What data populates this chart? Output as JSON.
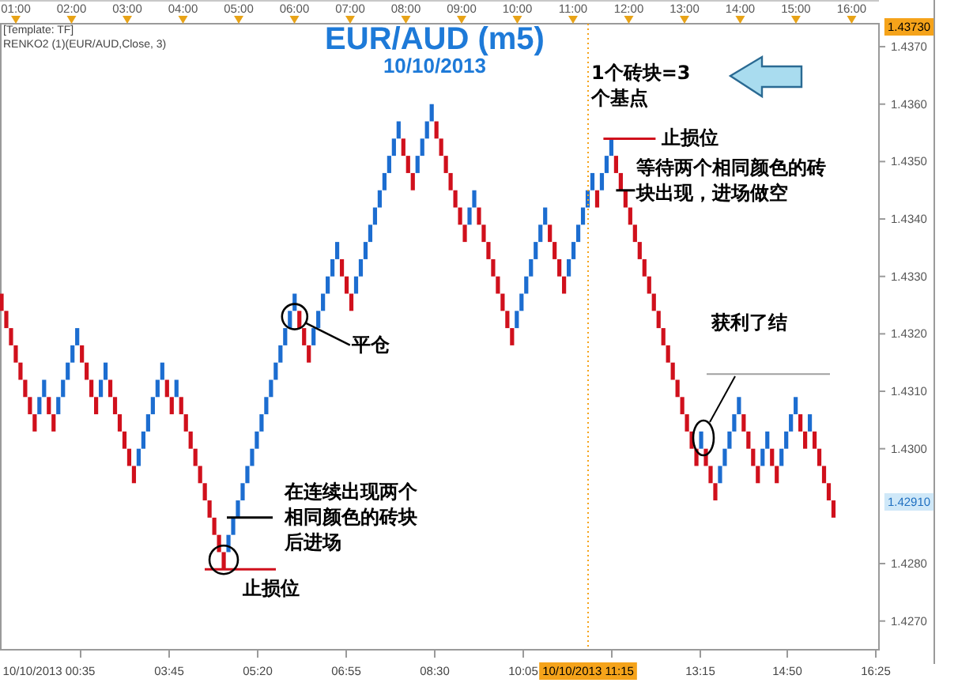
{
  "chart_data": {
    "type": "bar",
    "title": "EUR/AUD (m5)",
    "subtitle": "10/10/2013",
    "categories": [
      null,
      null,
      null,
      null,
      null,
      null,
      null,
      null,
      null,
      null,
      null,
      null,
      null,
      null,
      null,
      null,
      null,
      null,
      null,
      null,
      null,
      null,
      null,
      null,
      null,
      null,
      null,
      null,
      null,
      null,
      null,
      null,
      null,
      null,
      null,
      null,
      null,
      null,
      null,
      null,
      null,
      null,
      null,
      null,
      null,
      null,
      null,
      null,
      null,
      null,
      null,
      null,
      null,
      null,
      null,
      null,
      null,
      null,
      null,
      null,
      null,
      null,
      null,
      null,
      null,
      null,
      null,
      null,
      null,
      null,
      null,
      null,
      null,
      null,
      null,
      null,
      null,
      null,
      null,
      null,
      null,
      null,
      null,
      null,
      null,
      null,
      null,
      null,
      null,
      null,
      null,
      null,
      null,
      null,
      null,
      null,
      null,
      null,
      null,
      null,
      null,
      null,
      null,
      null,
      null,
      null,
      null,
      null,
      null,
      null,
      null,
      null,
      null,
      null,
      null,
      null,
      null,
      null,
      null,
      null,
      null,
      null,
      null,
      null,
      null,
      null,
      null,
      null,
      null,
      null,
      null,
      null,
      null,
      null,
      null,
      null,
      null,
      null,
      null,
      null,
      null,
      null,
      null,
      null,
      null,
      null,
      null,
      null,
      null,
      null,
      null,
      null,
      null,
      null,
      null,
      null,
      null,
      null,
      null,
      null,
      null,
      null,
      null,
      null,
      null,
      null,
      null,
      null,
      null,
      null,
      null,
      null,
      null,
      null,
      null,
      null,
      null
    ],
    "base": [
      1.4327,
      1.4324,
      1.4321,
      1.4318,
      1.4315,
      1.4312,
      1.4309,
      1.4306,
      1.4306,
      1.4309,
      1.4309,
      1.4306,
      1.4306,
      1.4309,
      1.4312,
      1.4315,
      1.4318,
      1.4318,
      1.4315,
      1.4312,
      1.4309,
      1.4309,
      1.4312,
      1.4312,
      1.4309,
      1.4306,
      1.4303,
      1.43,
      1.4297,
      1.4297,
      1.43,
      1.4303,
      1.4306,
      1.4309,
      1.4312,
      1.4312,
      1.4309,
      1.4309,
      1.4309,
      1.4306,
      1.4303,
      1.43,
      1.4297,
      1.4294,
      1.4291,
      1.4288,
      1.4285,
      1.4282,
      1.4282,
      1.4285,
      1.4288,
      1.4291,
      1.4294,
      1.4297,
      1.43,
      1.4303,
      1.4306,
      1.4309,
      1.4312,
      1.4315,
      1.4318,
      1.4321,
      1.4324,
      1.4324,
      1.4321,
      1.4318,
      1.4318,
      1.4321,
      1.4324,
      1.4327,
      1.433,
      1.4333,
      1.4333,
      1.433,
      1.4327,
      1.4327,
      1.433,
      1.4333,
      1.4336,
      1.4339,
      1.4342,
      1.4345,
      1.4348,
      1.4351,
      1.4354,
      1.4354,
      1.4351,
      1.4348,
      1.4348,
      1.4351,
      1.4354,
      1.4357,
      1.4357,
      1.4354,
      1.4351,
      1.4348,
      1.4345,
      1.4342,
      1.4339,
      1.4339,
      1.4342,
      1.4342,
      1.4339,
      1.4336,
      1.4333,
      1.433,
      1.4327,
      1.4324,
      1.4321,
      1.4321,
      1.4324,
      1.4327,
      1.433,
      1.4333,
      1.4336,
      1.4339,
      1.4339,
      1.4336,
      1.4333,
      1.433,
      1.433,
      1.4333,
      1.4336,
      1.4339,
      1.4342,
      1.4345,
      1.4345,
      1.4345,
      1.4348,
      1.4351,
      1.4351,
      1.4348,
      1.4345,
      1.4342,
      1.4339,
      1.4336,
      1.4333,
      1.433,
      1.4327,
      1.4324,
      1.4321,
      1.4318,
      1.4315,
      1.4312,
      1.4309,
      1.4306,
      1.4303,
      1.43,
      1.43,
      1.43,
      1.4297,
      1.4294,
      1.4294,
      1.4297,
      1.43,
      1.4303,
      1.4306,
      1.4306,
      1.4303,
      1.43,
      1.4297,
      1.4297,
      1.43,
      1.43,
      1.4297,
      1.4297,
      1.43,
      1.4303,
      1.4306,
      1.4306,
      1.4303,
      1.4303,
      1.4303,
      1.43,
      1.4297,
      1.4294,
      1.4291
    ],
    "values": [
      -0.0003,
      -0.0003,
      -0.0003,
      -0.0003,
      -0.0003,
      -0.0003,
      -0.0003,
      -0.0003,
      0.0003,
      0.0003,
      -0.0003,
      -0.0003,
      0.0003,
      0.0003,
      0.0003,
      0.0003,
      0.0003,
      -0.0003,
      -0.0003,
      -0.0003,
      -0.0003,
      0.0003,
      0.0003,
      -0.0003,
      -0.0003,
      -0.0003,
      -0.0003,
      -0.0003,
      -0.0003,
      0.0003,
      0.0003,
      0.0003,
      0.0003,
      0.0003,
      0.0003,
      -0.0003,
      -0.0003,
      0.0003,
      -0.0003,
      -0.0003,
      -0.0003,
      -0.0003,
      -0.0003,
      -0.0003,
      -0.0003,
      -0.0003,
      -0.0003,
      -0.0003,
      0.0003,
      0.0003,
      0.0003,
      0.0003,
      0.0003,
      0.0003,
      0.0003,
      0.0003,
      0.0003,
      0.0003,
      0.0003,
      0.0003,
      0.0003,
      0.0003,
      0.0003,
      -0.0003,
      -0.0003,
      -0.0003,
      0.0003,
      0.0003,
      0.0003,
      0.0003,
      0.0003,
      0.0003,
      -0.0003,
      -0.0003,
      -0.0003,
      0.0003,
      0.0003,
      0.0003,
      0.0003,
      0.0003,
      0.0003,
      0.0003,
      0.0003,
      0.0003,
      0.0003,
      -0.0003,
      -0.0003,
      -0.0003,
      0.0003,
      0.0003,
      0.0003,
      0.0003,
      -0.0003,
      -0.0003,
      -0.0003,
      -0.0003,
      -0.0003,
      -0.0003,
      -0.0003,
      0.0003,
      0.0003,
      -0.0003,
      -0.0003,
      -0.0003,
      -0.0003,
      -0.0003,
      -0.0003,
      -0.0003,
      -0.0003,
      0.0003,
      0.0003,
      0.0003,
      0.0003,
      0.0003,
      0.0003,
      0.0003,
      -0.0003,
      -0.0003,
      -0.0003,
      -0.0003,
      0.0003,
      0.0003,
      0.0003,
      0.0003,
      0.0003,
      0.0003,
      -0.0003,
      0.0003,
      0.0003,
      0.0003,
      -0.0003,
      -0.0003,
      -0.0003,
      -0.0003,
      -0.0003,
      -0.0003,
      -0.0003,
      -0.0003,
      -0.0003,
      -0.0003,
      -0.0003,
      -0.0003,
      -0.0003,
      -0.0003,
      -0.0003,
      -0.0003,
      -0.0003,
      -0.0003,
      0.0003,
      -0.0003,
      -0.0003,
      -0.0003,
      0.0003,
      0.0003,
      0.0003,
      0.0003,
      0.0003,
      -0.0003,
      -0.0003,
      -0.0003,
      -0.0003,
      0.0003,
      0.0003,
      -0.0003,
      -0.0003,
      0.0003,
      0.0003,
      0.0003,
      0.0003,
      -0.0003,
      -0.0003,
      0.0003,
      -0.0003,
      -0.0003,
      -0.0003,
      -0.0003,
      -0.0003
    ],
    "colors": [
      "#d0101c",
      "#d0101c",
      "#d0101c",
      "#d0101c",
      "#d0101c",
      "#d0101c",
      "#d0101c",
      "#d0101c",
      "#1c6dd0",
      "#1c6dd0",
      "#d0101c",
      "#d0101c",
      "#1c6dd0",
      "#1c6dd0",
      "#1c6dd0",
      "#1c6dd0",
      "#1c6dd0",
      "#d0101c",
      "#d0101c",
      "#d0101c",
      "#d0101c",
      "#1c6dd0",
      "#1c6dd0",
      "#d0101c",
      "#d0101c",
      "#d0101c",
      "#d0101c",
      "#d0101c",
      "#d0101c",
      "#1c6dd0",
      "#1c6dd0",
      "#1c6dd0",
      "#1c6dd0",
      "#1c6dd0",
      "#1c6dd0",
      "#d0101c",
      "#d0101c",
      "#1c6dd0",
      "#d0101c",
      "#d0101c",
      "#d0101c",
      "#d0101c",
      "#d0101c",
      "#d0101c",
      "#d0101c",
      "#d0101c",
      "#d0101c",
      "#d0101c",
      "#1c6dd0",
      "#1c6dd0",
      "#1c6dd0",
      "#1c6dd0",
      "#1c6dd0",
      "#1c6dd0",
      "#1c6dd0",
      "#1c6dd0",
      "#1c6dd0",
      "#1c6dd0",
      "#1c6dd0",
      "#1c6dd0",
      "#1c6dd0",
      "#1c6dd0",
      "#1c6dd0",
      "#d0101c",
      "#d0101c",
      "#d0101c",
      "#1c6dd0",
      "#1c6dd0",
      "#1c6dd0",
      "#1c6dd0",
      "#1c6dd0",
      "#1c6dd0",
      "#d0101c",
      "#d0101c",
      "#d0101c",
      "#1c6dd0",
      "#1c6dd0",
      "#1c6dd0",
      "#1c6dd0",
      "#1c6dd0",
      "#1c6dd0",
      "#1c6dd0",
      "#1c6dd0",
      "#1c6dd0",
      "#1c6dd0",
      "#d0101c",
      "#d0101c",
      "#d0101c",
      "#1c6dd0",
      "#1c6dd0",
      "#1c6dd0",
      "#1c6dd0",
      "#d0101c",
      "#d0101c",
      "#d0101c",
      "#d0101c",
      "#d0101c",
      "#d0101c",
      "#d0101c",
      "#1c6dd0",
      "#1c6dd0",
      "#d0101c",
      "#d0101c",
      "#d0101c",
      "#d0101c",
      "#d0101c",
      "#d0101c",
      "#d0101c",
      "#d0101c",
      "#1c6dd0",
      "#1c6dd0",
      "#1c6dd0",
      "#1c6dd0",
      "#1c6dd0",
      "#1c6dd0",
      "#1c6dd0",
      "#d0101c",
      "#d0101c",
      "#d0101c",
      "#d0101c",
      "#1c6dd0",
      "#1c6dd0",
      "#1c6dd0",
      "#1c6dd0",
      "#1c6dd0",
      "#1c6dd0",
      "#d0101c",
      "#1c6dd0",
      "#1c6dd0",
      "#1c6dd0",
      "#d0101c",
      "#d0101c",
      "#d0101c",
      "#d0101c",
      "#d0101c",
      "#d0101c",
      "#d0101c",
      "#d0101c",
      "#d0101c",
      "#d0101c",
      "#d0101c",
      "#d0101c",
      "#d0101c",
      "#d0101c",
      "#d0101c",
      "#d0101c",
      "#d0101c",
      "#d0101c",
      "#1c6dd0",
      "#d0101c",
      "#d0101c",
      "#d0101c",
      "#1c6dd0",
      "#1c6dd0",
      "#1c6dd0",
      "#1c6dd0",
      "#1c6dd0",
      "#d0101c",
      "#d0101c",
      "#d0101c",
      "#d0101c",
      "#1c6dd0",
      "#1c6dd0",
      "#d0101c",
      "#d0101c",
      "#1c6dd0",
      "#1c6dd0",
      "#1c6dd0",
      "#1c6dd0",
      "#d0101c",
      "#d0101c",
      "#1c6dd0",
      "#d0101c",
      "#d0101c",
      "#d0101c",
      "#d0101c",
      "#d0101c"
    ],
    "x2lim": [
      0.716,
      16.49
    ],
    "x2ticks": [
      {
        "value": 1,
        "label": "01:00"
      },
      {
        "value": 2,
        "label": "02:00"
      },
      {
        "value": 3,
        "label": "03:00"
      },
      {
        "value": 4,
        "label": "04:00"
      },
      {
        "value": 5,
        "label": "05:00"
      },
      {
        "value": 6,
        "label": "06:00"
      },
      {
        "value": 7,
        "label": "07:00"
      },
      {
        "value": 8,
        "label": "08:00"
      },
      {
        "value": 9,
        "label": "09:00"
      },
      {
        "value": 10,
        "label": "10:00"
      },
      {
        "value": 11,
        "label": "11:00"
      },
      {
        "value": 12,
        "label": "12:00"
      },
      {
        "value": 13,
        "label": "13:00"
      },
      {
        "value": 14,
        "label": "14:00"
      },
      {
        "value": 15,
        "label": "15:00"
      },
      {
        "value": 16,
        "label": "16:00"
      }
    ],
    "ylim": [
      1.4265,
      1.4374
    ],
    "yticks": [
      {
        "value": 1.427,
        "label": "1.4270"
      },
      {
        "value": 1.428,
        "label": "1.4280"
      },
      {
        "value": 1.43,
        "label": "1.4300"
      },
      {
        "value": 1.431,
        "label": "1.4310"
      },
      {
        "value": 1.432,
        "label": "1.4320"
      },
      {
        "value": 1.433,
        "label": "1.4330"
      },
      {
        "value": 1.434,
        "label": "1.4340"
      },
      {
        "value": 1.435,
        "label": "1.4350"
      },
      {
        "value": 1.436,
        "label": "1.4360"
      },
      {
        "value": 1.437,
        "label": "1.4370"
      }
    ],
    "ref_lines": [
      {
        "axis": "y",
        "value": 1.4313,
        "color": "#a0a0a0"
      }
    ],
    "annotations": [
      "[Template: TF]",
      "RENKO2 (1)(EUR/AUD,Close, 3)",
      "1个砖块=3个基点",
      "止损位",
      "在连续出现两个相同颜色的砖块后进场",
      "平仓",
      "止损位",
      "等待两个相同颜色的砖块出现，进场做空",
      "获利了结",
      "1.42910",
      "1.43730",
      "10/10/2013 00:35",
      "03:45",
      "05:20",
      "06:55",
      "08:30",
      "10:05",
      "13:15",
      "14:50",
      "16:25",
      "10/10/2013 11:15"
    ]
  }
}
